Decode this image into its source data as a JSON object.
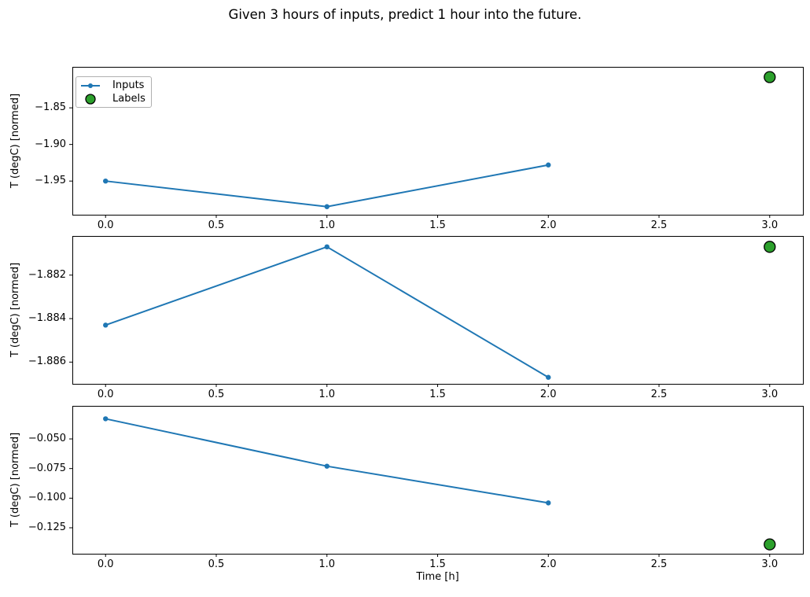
{
  "figure": {
    "title": "Given 3 hours of inputs, predict 1 hour into the future.",
    "background": "#ffffff"
  },
  "colors": {
    "inputs_line": "#1f77b4",
    "labels_fill": "#2ca02c",
    "labels_edge": "#000000",
    "axis": "#000000",
    "text": "#000000",
    "legend_border": "#b0b0b0"
  },
  "legend": {
    "position": "upper left",
    "items": [
      {
        "label": "Inputs",
        "marker": "line-with-dot",
        "color": "#1f77b4"
      },
      {
        "label": "Labels",
        "marker": "filled-circle",
        "color": "#2ca02c"
      }
    ]
  },
  "chart_data": [
    {
      "type": "line",
      "ylabel": "T (degC) [normed]",
      "xlabel": "",
      "xlim": [
        -0.15,
        3.15
      ],
      "ylim": [
        -1.996,
        -1.794
      ],
      "xticks": [
        0.0,
        0.5,
        1.0,
        1.5,
        2.0,
        2.5,
        3.0
      ],
      "xtick_labels": [
        "0.0",
        "0.5",
        "1.0",
        "1.5",
        "2.0",
        "2.5",
        "3.0"
      ],
      "yticks": [
        -1.85,
        -1.9,
        -1.95
      ],
      "ytick_labels": [
        "−1.85",
        "−1.90",
        "−1.95"
      ],
      "series": [
        {
          "name": "Inputs",
          "type": "line",
          "x": [
            0.0,
            1.0,
            2.0
          ],
          "y": [
            -1.95,
            -1.985,
            -1.928
          ]
        },
        {
          "name": "Labels",
          "type": "scatter",
          "x": [
            3.0
          ],
          "y": [
            -1.808
          ]
        }
      ]
    },
    {
      "type": "line",
      "ylabel": "T (degC) [normed]",
      "xlabel": "",
      "xlim": [
        -0.15,
        3.15
      ],
      "ylim": [
        -1.887,
        -1.8802
      ],
      "xticks": [
        0.0,
        0.5,
        1.0,
        1.5,
        2.0,
        2.5,
        3.0
      ],
      "xtick_labels": [
        "0.0",
        "0.5",
        "1.0",
        "1.5",
        "2.0",
        "2.5",
        "3.0"
      ],
      "yticks": [
        -1.882,
        -1.884,
        -1.886
      ],
      "ytick_labels": [
        "−1.882",
        "−1.884",
        "−1.886"
      ],
      "series": [
        {
          "name": "Inputs",
          "type": "line",
          "x": [
            0.0,
            1.0,
            2.0
          ],
          "y": [
            -1.8843,
            -1.8807,
            -1.8867
          ]
        },
        {
          "name": "Labels",
          "type": "scatter",
          "x": [
            3.0
          ],
          "y": [
            -1.8807
          ]
        }
      ]
    },
    {
      "type": "line",
      "ylabel": "T (degC) [normed]",
      "xlabel": "Time [h]",
      "xlim": [
        -0.15,
        3.15
      ],
      "ylim": [
        -0.1469,
        -0.0221
      ],
      "xticks": [
        0.0,
        0.5,
        1.0,
        1.5,
        2.0,
        2.5,
        3.0
      ],
      "xtick_labels": [
        "0.0",
        "0.5",
        "1.0",
        "1.5",
        "2.0",
        "2.5",
        "3.0"
      ],
      "yticks": [
        -0.05,
        -0.075,
        -0.1,
        -0.125
      ],
      "ytick_labels": [
        "−0.050",
        "−0.075",
        "−0.100",
        "−0.125"
      ],
      "series": [
        {
          "name": "Inputs",
          "type": "line",
          "x": [
            0.0,
            1.0,
            2.0
          ],
          "y": [
            -0.033,
            -0.073,
            -0.104
          ]
        },
        {
          "name": "Labels",
          "type": "scatter",
          "x": [
            3.0
          ],
          "y": [
            -0.139
          ]
        }
      ]
    }
  ]
}
